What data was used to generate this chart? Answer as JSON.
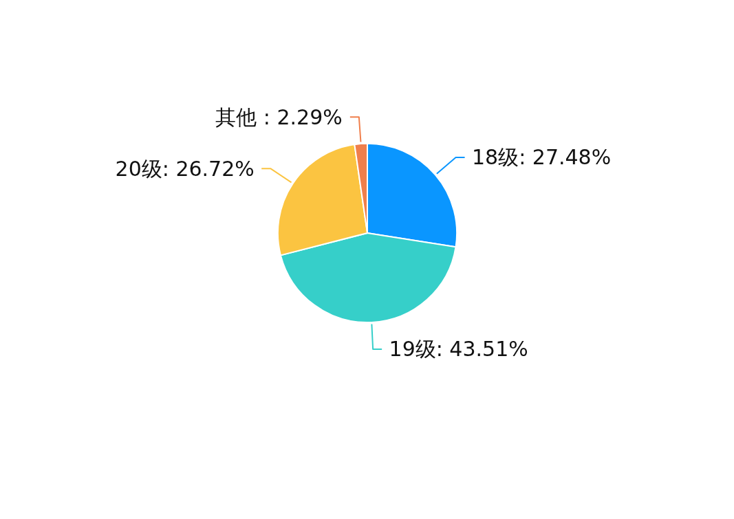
{
  "chart_data": {
    "type": "pie",
    "categories": [
      "18级",
      "19级",
      "20级",
      "其他 "
    ],
    "values": [
      27.48,
      43.51,
      26.72,
      2.29
    ],
    "colors": [
      "#0a96ff",
      "#36cfc9",
      "#fbc441",
      "#f07f4c"
    ],
    "value_labels": [
      "27.48%",
      "43.51%",
      "26.72%",
      "2.29%"
    ]
  }
}
